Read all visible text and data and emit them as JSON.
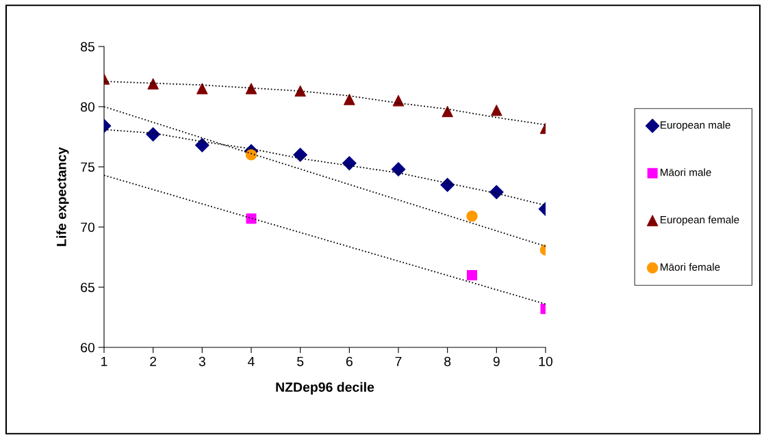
{
  "chart_data": {
    "type": "scatter",
    "xlabel": "NZDep96 decile",
    "ylabel": "Life expectancy",
    "xlim": [
      1,
      10
    ],
    "xticks": [
      1,
      2,
      3,
      4,
      5,
      6,
      7,
      8,
      9,
      10
    ],
    "ylim": [
      60,
      85
    ],
    "yticks": [
      60,
      65,
      70,
      75,
      80,
      85
    ],
    "grid": false,
    "legend": "right",
    "series": [
      {
        "name": "European male",
        "marker": "diamond",
        "color": "#000080",
        "x": [
          1,
          2,
          3,
          4,
          5,
          6,
          7,
          8,
          9,
          10
        ],
        "values": [
          78.4,
          77.7,
          76.8,
          76.3,
          76.0,
          75.3,
          74.8,
          73.5,
          72.9,
          71.5
        ]
      },
      {
        "name": "Māori male",
        "marker": "square",
        "color": "#ff00ff",
        "x": [
          4,
          8.5,
          10
        ],
        "values": [
          70.7,
          66.0,
          63.2
        ]
      },
      {
        "name": "European female",
        "marker": "triangle",
        "color": "#800000",
        "x": [
          1,
          2,
          3,
          4,
          5,
          6,
          7,
          8,
          9,
          10
        ],
        "values": [
          82.3,
          81.9,
          81.5,
          81.5,
          81.3,
          80.6,
          80.5,
          79.6,
          79.7,
          78.2
        ]
      },
      {
        "name": "Māori female",
        "marker": "circle",
        "color": "#ff9900",
        "x": [
          4,
          8.5,
          10
        ],
        "values": [
          76.0,
          70.9,
          68.1
        ]
      },
      {
        "type": "line",
        "line_style": "dotted",
        "color": "#000000",
        "x": [
          1,
          2,
          3,
          4,
          5,
          7,
          9,
          10
        ],
        "values": [
          78.1,
          77.8,
          77.1,
          76.5,
          75.7,
          74.5,
          72.8,
          71.8
        ]
      },
      {
        "type": "line",
        "line_style": "dotted",
        "color": "#000000",
        "x": [
          1,
          10
        ],
        "values": [
          74.3,
          63.6
        ]
      },
      {
        "type": "line",
        "line_style": "dotted",
        "color": "#000000",
        "x": [
          1,
          3,
          5,
          6,
          7,
          8,
          9,
          10
        ],
        "values": [
          82.1,
          81.8,
          81.3,
          80.9,
          80.3,
          79.8,
          79.1,
          78.5
        ]
      },
      {
        "type": "line",
        "line_style": "dotted",
        "color": "#000000",
        "x": [
          1,
          4,
          10
        ],
        "values": [
          80.0,
          76.1,
          68.4
        ]
      }
    ]
  }
}
